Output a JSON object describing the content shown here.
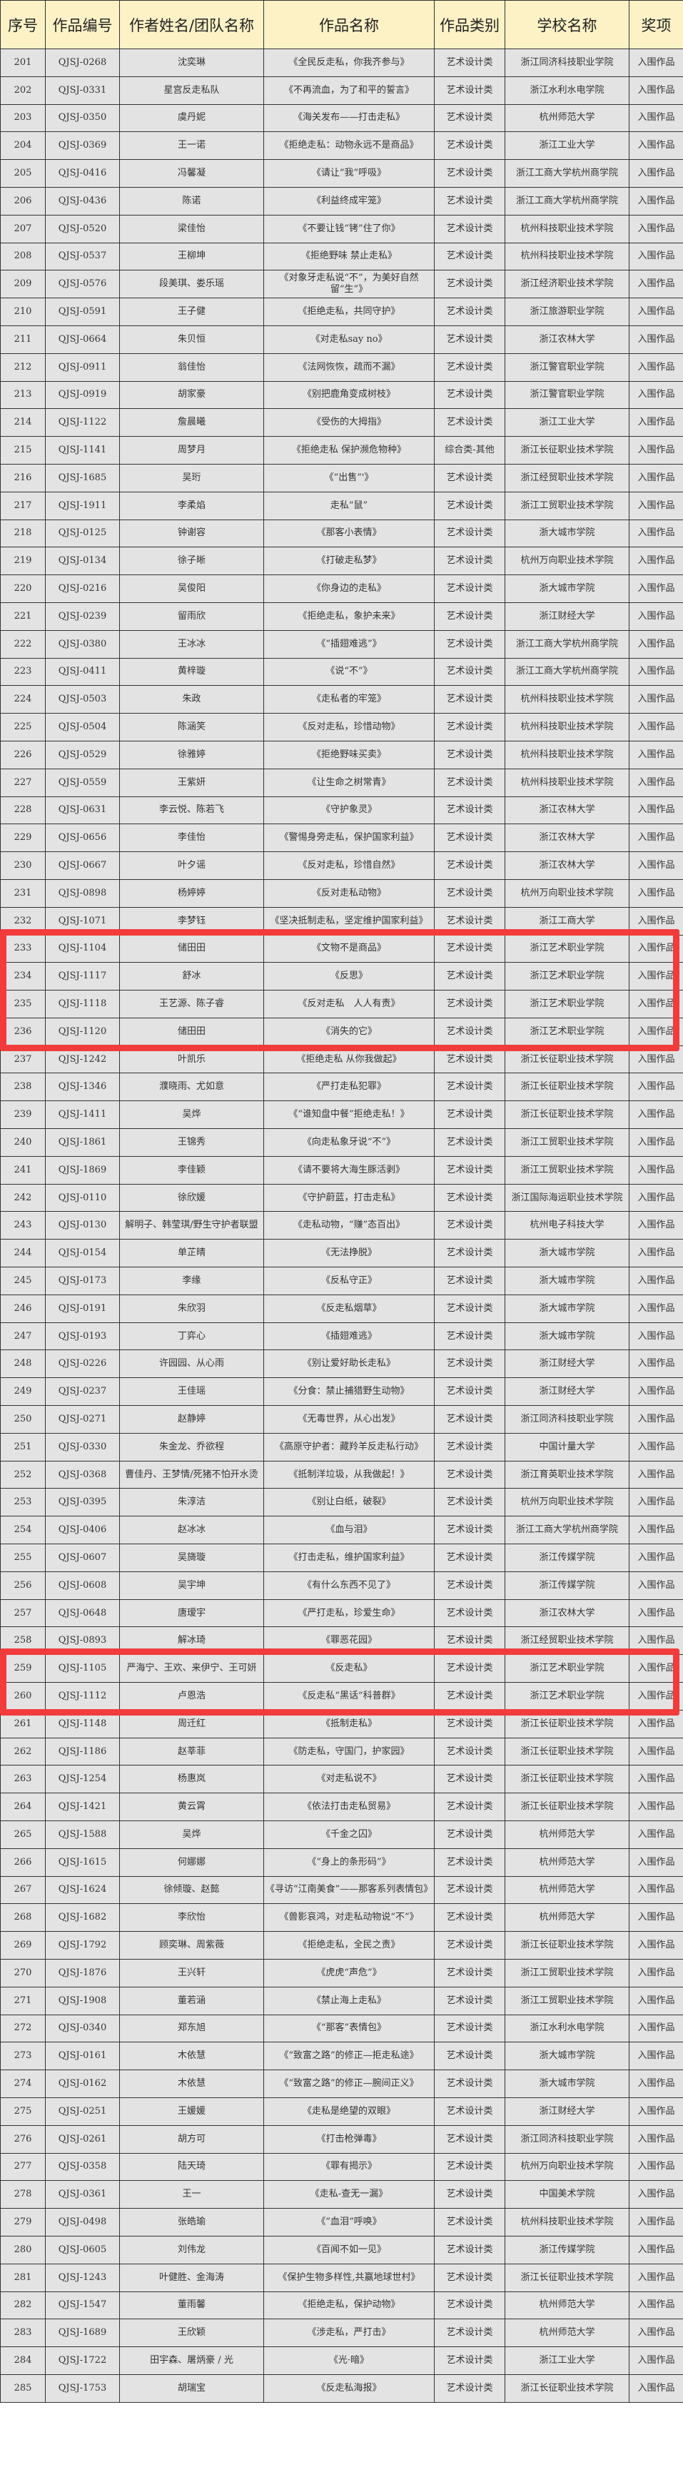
{
  "headers": [
    "序号",
    "作品编号",
    "作者姓名/团队名称",
    "作品名称",
    "作品类别",
    "学校名称",
    "奖项"
  ],
  "highlight_color": "#f23b3b",
  "highlight_groups": [
    [
      233,
      236
    ],
    [
      259,
      260
    ]
  ],
  "rows": [
    [
      "201",
      "QJSJ-0268",
      "沈奕琳",
      "《全民反走私，你我齐参与》",
      "艺术设计类",
      "浙江同济科技职业学院",
      "入围作品"
    ],
    [
      "202",
      "QJSJ-0331",
      "星宫反走私队",
      "《不再流血，为了和平的誓言》",
      "艺术设计类",
      "浙江水利水电学院",
      "入围作品"
    ],
    [
      "203",
      "QJSJ-0350",
      "虞丹妮",
      "《海关发布——打击走私》",
      "艺术设计类",
      "杭州师范大学",
      "入围作品"
    ],
    [
      "204",
      "QJSJ-0369",
      "王一诺",
      "《拒绝走私：动物永远不是商品》",
      "艺术设计类",
      "浙江工业大学",
      "入围作品"
    ],
    [
      "205",
      "QJSJ-0416",
      "冯馨凝",
      "《请让“我”呼吸》",
      "艺术设计类",
      "浙江工商大学杭州商学院",
      "入围作品"
    ],
    [
      "206",
      "QJSJ-0436",
      "陈诺",
      "《利益终成牢笼》",
      "艺术设计类",
      "浙江工商大学杭州商学院",
      "入围作品"
    ],
    [
      "207",
      "QJSJ-0520",
      "梁佳怡",
      "《不要让钱“铐”住了你》",
      "艺术设计类",
      "杭州科技职业技术学院",
      "入围作品"
    ],
    [
      "208",
      "QJSJ-0537",
      "王柳坤",
      "《拒绝野味 禁止走私》",
      "艺术设计类",
      "杭州科技职业技术学院",
      "入围作品"
    ],
    [
      "209",
      "QJSJ-0576",
      "段美琪、娄乐瑶",
      "《对象牙走私说“不”，为美好自然留“生”》",
      "艺术设计类",
      "浙江经济职业技术学院",
      "入围作品"
    ],
    [
      "210",
      "QJSJ-0591",
      "王子健",
      "《拒绝走私，共同守护》",
      "艺术设计类",
      "浙江旅游职业学院",
      "入围作品"
    ],
    [
      "211",
      "QJSJ-0664",
      "朱贝恒",
      "《对走私say no》",
      "艺术设计类",
      "浙江农林大学",
      "入围作品"
    ],
    [
      "212",
      "QJSJ-0911",
      "翁佳怡",
      "《法网恢恢，疏而不漏》",
      "艺术设计类",
      "浙江警官职业学院",
      "入围作品"
    ],
    [
      "213",
      "QJSJ-0919",
      "胡家豪",
      "《别把鹿角变成树枝》",
      "艺术设计类",
      "浙江警官职业学院",
      "入围作品"
    ],
    [
      "214",
      "QJSJ-1122",
      "詹晨曦",
      "《受伤的大拇指》",
      "艺术设计类",
      "浙江工业大学",
      "入围作品"
    ],
    [
      "215",
      "QJSJ-1141",
      "周梦月",
      "《拒绝走私 保护濒危物种》",
      "综合类-其他",
      "浙江长征职业技术学院",
      "入围作品"
    ],
    [
      "216",
      "QJSJ-1685",
      "吴珩",
      "《“出售”'》",
      "艺术设计类",
      "浙江经贸职业技术学院",
      "入围作品"
    ],
    [
      "217",
      "QJSJ-1911",
      "李柔焰",
      "走私“鼠”",
      "艺术设计类",
      "浙江工贸职业技术学院",
      "入围作品"
    ],
    [
      "218",
      "QJSJ-0125",
      "钟谢容",
      "《那客小表情》",
      "艺术设计类",
      "浙大城市学院",
      "入围作品"
    ],
    [
      "219",
      "QJSJ-0134",
      "徐子晰",
      "《打破走私梦》",
      "艺术设计类",
      "杭州万向职业技术学院",
      "入围作品"
    ],
    [
      "220",
      "QJSJ-0216",
      "吴俊阳",
      "《你身边的走私》",
      "艺术设计类",
      "浙大城市学院",
      "入围作品"
    ],
    [
      "221",
      "QJSJ-0239",
      "留雨欣",
      "《拒绝走私，象护未来》",
      "艺术设计类",
      "浙江财经大学",
      "入围作品"
    ],
    [
      "222",
      "QJSJ-0380",
      "王冰冰",
      "《“插翅难逃”》",
      "艺术设计类",
      "浙江工商大学杭州商学院",
      "入围作品"
    ],
    [
      "223",
      "QJSJ-0411",
      "黄梓璇",
      "《说“不”》",
      "艺术设计类",
      "浙江工商大学杭州商学院",
      "入围作品"
    ],
    [
      "224",
      "QJSJ-0503",
      "朱政",
      "《走私者的牢笼》",
      "艺术设计类",
      "杭州科技职业技术学院",
      "入围作品"
    ],
    [
      "225",
      "QJSJ-0504",
      "陈涵笑",
      "《反对走私，珍惜动物》",
      "艺术设计类",
      "杭州科技职业技术学院",
      "入围作品"
    ],
    [
      "226",
      "QJSJ-0529",
      "徐雅婷",
      "《拒绝野味买卖》",
      "艺术设计类",
      "杭州科技职业技术学院",
      "入围作品"
    ],
    [
      "227",
      "QJSJ-0559",
      "王紫妍",
      "《让生命之树常青》",
      "艺术设计类",
      "杭州科技职业技术学院",
      "入围作品"
    ],
    [
      "228",
      "QJSJ-0631",
      "李云悦、陈若飞",
      "《守护象灵》",
      "艺术设计类",
      "浙江农林大学",
      "入围作品"
    ],
    [
      "229",
      "QJSJ-0656",
      "李佳怡",
      "《警惕身旁走私，保护国家利益》",
      "艺术设计类",
      "浙江农林大学",
      "入围作品"
    ],
    [
      "230",
      "QJSJ-0667",
      "叶夕谣",
      "《反对走私，珍惜自然》",
      "艺术设计类",
      "浙江农林大学",
      "入围作品"
    ],
    [
      "231",
      "QJSJ-0898",
      "杨婷婷",
      "《反对走私动物》",
      "艺术设计类",
      "杭州万向职业技术学院",
      "入围作品"
    ],
    [
      "232",
      "QJSJ-1071",
      "李梦钰",
      "《坚决抵制走私，坚定维护国家利益》",
      "艺术设计类",
      "浙江工商大学",
      "入围作品"
    ],
    [
      "233",
      "QJSJ-1104",
      "储田田",
      "《文物不是商品》",
      "艺术设计类",
      "浙江艺术职业学院",
      "入围作品"
    ],
    [
      "234",
      "QJSJ-1117",
      "舒冰",
      "《反思》",
      "艺术设计类",
      "浙江艺术职业学院",
      "入围作品"
    ],
    [
      "235",
      "QJSJ-1118",
      "王艺源、陈子睿",
      "《反对走私　人人有责》",
      "艺术设计类",
      "浙江艺术职业学院",
      "入围作品"
    ],
    [
      "236",
      "QJSJ-1120",
      "储田田",
      "《消失的它》",
      "艺术设计类",
      "浙江艺术职业学院",
      "入围作品"
    ],
    [
      "237",
      "QJSJ-1242",
      "叶凯乐",
      "《拒绝走私 从你我做起》",
      "艺术设计类",
      "浙江长征职业技术学院",
      "入围作品"
    ],
    [
      "238",
      "QJSJ-1346",
      "濮晓雨、尤如意",
      "《严打走私犯罪》",
      "艺术设计类",
      "浙江长征职业技术学院",
      "入围作品"
    ],
    [
      "239",
      "QJSJ-1411",
      "吴烨",
      "《“谁知盘中餐”拒绝走私！》",
      "艺术设计类",
      "浙江长征职业技术学院",
      "入围作品"
    ],
    [
      "240",
      "QJSJ-1861",
      "王锦秀",
      "《向走私象牙说“不”》",
      "艺术设计类",
      "浙江工贸职业技术学院",
      "入围作品"
    ],
    [
      "241",
      "QJSJ-1869",
      "李佳颖",
      "《请不要将大海生豚活剥》",
      "艺术设计类",
      "浙江工贸职业技术学院",
      "入围作品"
    ],
    [
      "242",
      "QJSJ-0110",
      "徐欣媛",
      "《守护蔚蓝，打击走私》",
      "艺术设计类",
      "浙江国际海运职业技术学院",
      "入围作品"
    ],
    [
      "243",
      "QJSJ-0130",
      "解明子、韩莹琪/野生守护者联盟",
      "《走私动物，“赚”态百出》",
      "艺术设计类",
      "杭州电子科技大学",
      "入围作品"
    ],
    [
      "244",
      "QJSJ-0154",
      "单芷晴",
      "《无法挣脱》",
      "艺术设计类",
      "浙大城市学院",
      "入围作品"
    ],
    [
      "245",
      "QJSJ-0173",
      "李缘",
      "《反私守正》",
      "艺术设计类",
      "浙大城市学院",
      "入围作品"
    ],
    [
      "246",
      "QJSJ-0191",
      "朱欣羽",
      "《反走私烟草》",
      "艺术设计类",
      "浙大城市学院",
      "入围作品"
    ],
    [
      "247",
      "QJSJ-0193",
      "丁弈心",
      "《插翅难逃》",
      "艺术设计类",
      "浙大城市学院",
      "入围作品"
    ],
    [
      "248",
      "QJSJ-0226",
      "许园园、从心雨",
      "《别让爱好助长走私》",
      "艺术设计类",
      "浙江财经大学",
      "入围作品"
    ],
    [
      "249",
      "QJSJ-0237",
      "王佳瑶",
      "《分食：禁止捕猎野生动物》",
      "艺术设计类",
      "浙江财经大学",
      "入围作品"
    ],
    [
      "250",
      "QJSJ-0271",
      "赵静婷",
      "《无毒世界，从心出发》",
      "艺术设计类",
      "浙江同济科技职业学院",
      "入围作品"
    ],
    [
      "251",
      "QJSJ-0330",
      "朱金龙、乔欲程",
      "《高原守护者：藏羚羊反走私行动》",
      "艺术设计类",
      "中国计量大学",
      "入围作品"
    ],
    [
      "252",
      "QJSJ-0368",
      "曹佳丹、王梦情/死猪不怕开水烫",
      "《抵制洋垃圾，从我做起！》",
      "艺术设计类",
      "浙江育英职业技术学院",
      "入围作品"
    ],
    [
      "253",
      "QJSJ-0395",
      "朱淳洁",
      "《别让白纸，破裂》",
      "艺术设计类",
      "杭州万向职业技术学院",
      "入围作品"
    ],
    [
      "254",
      "QJSJ-0406",
      "赵冰冰",
      "《血与泪》",
      "艺术设计类",
      "浙江工商大学杭州商学院",
      "入围作品"
    ],
    [
      "255",
      "QJSJ-0607",
      "吴旖璇",
      "《打击走私，维护国家利益》",
      "艺术设计类",
      "浙江传媒学院",
      "入围作品"
    ],
    [
      "256",
      "QJSJ-0608",
      "吴宇坤",
      "《有什么东西不见了》",
      "艺术设计类",
      "浙江传媒学院",
      "入围作品"
    ],
    [
      "257",
      "QJSJ-0648",
      "唐瑷宇",
      "《严打走私，珍爱生命》",
      "艺术设计类",
      "浙江农林大学",
      "入围作品"
    ],
    [
      "258",
      "QJSJ-0893",
      "解冰琦",
      "《罪恶花园》",
      "艺术设计类",
      "浙江经贸职业技术学院",
      "入围作品"
    ],
    [
      "259",
      "QJSJ-1105",
      "严海宁、王欢、来伊宁、王可妍",
      "《反走私》",
      "艺术设计类",
      "浙江艺术职业学院",
      "入围作品"
    ],
    [
      "260",
      "QJSJ-1112",
      "卢恩浩",
      "《反走私“黑话”科普群》",
      "艺术设计类",
      "浙江艺术职业学院",
      "入围作品"
    ],
    [
      "261",
      "QJSJ-1148",
      "周迁红",
      "《抵制走私》",
      "艺术设计类",
      "浙江长征职业技术学院",
      "入围作品"
    ],
    [
      "262",
      "QJSJ-1186",
      "赵莘菲",
      "《防走私，守国门，护家园》",
      "艺术设计类",
      "浙江长征职业技术学院",
      "入围作品"
    ],
    [
      "263",
      "QJSJ-1254",
      "杨惠岚",
      "《对走私说不》",
      "艺术设计类",
      "浙江长征职业技术学院",
      "入围作品"
    ],
    [
      "264",
      "QJSJ-1421",
      "黄云霄",
      "《依法打击走私贸易》",
      "艺术设计类",
      "浙江长征职业技术学院",
      "入围作品"
    ],
    [
      "265",
      "QJSJ-1588",
      "吴烨",
      "《千金之囚》",
      "艺术设计类",
      "杭州师范大学",
      "入围作品"
    ],
    [
      "266",
      "QJSJ-1615",
      "何娜娜",
      "《“身上的条形码”》",
      "艺术设计类",
      "杭州师范大学",
      "入围作品"
    ],
    [
      "267",
      "QJSJ-1624",
      "徐倾璇、赵懿",
      "《寻访“江南美食”——那客系列表情包》",
      "艺术设计类",
      "杭州师范大学",
      "入围作品"
    ],
    [
      "268",
      "QJSJ-1682",
      "李欣怡",
      "《兽影哀鸿，对走私动物说“不”》",
      "艺术设计类",
      "杭州师范大学",
      "入围作品"
    ],
    [
      "269",
      "QJSJ-1792",
      "顾奕琳、周紫薇",
      "《拒绝走私，全民之责》",
      "艺术设计类",
      "浙江长征职业技术学院",
      "入围作品"
    ],
    [
      "270",
      "QJSJ-1876",
      "王兴轩",
      "《虎虎“声危”》",
      "艺术设计类",
      "浙江工贸职业技术学院",
      "入围作品"
    ],
    [
      "271",
      "QJSJ-1908",
      "董若涵",
      "《禁止海上走私》",
      "艺术设计类",
      "浙江工贸职业技术学院",
      "入围作品"
    ],
    [
      "272",
      "QJSJ-0340",
      "郑东旭",
      "《“那客”表情包》",
      "艺术设计类",
      "浙江水利水电学院",
      "入围作品"
    ],
    [
      "273",
      "QJSJ-0161",
      "木依慧",
      "《“致富之路”的修正—拒走私途》",
      "艺术设计类",
      "浙大城市学院",
      "入围作品"
    ],
    [
      "274",
      "QJSJ-0162",
      "木依慧",
      "《“致富之路”的修正—腕间正义》",
      "艺术设计类",
      "浙大城市学院",
      "入围作品"
    ],
    [
      "275",
      "QJSJ-0251",
      "王媛媛",
      "《走私是绝望的双眼》",
      "艺术设计类",
      "浙江财经大学",
      "入围作品"
    ],
    [
      "276",
      "QJSJ-0261",
      "胡方可",
      "《打击枪弹毒》",
      "艺术设计类",
      "浙江同济科技职业学院",
      "入围作品"
    ],
    [
      "277",
      "QJSJ-0358",
      "陆天琦",
      "《罪有揭示》",
      "艺术设计类",
      "杭州万向职业技术学院",
      "入围作品"
    ],
    [
      "278",
      "QJSJ-0361",
      "王一",
      "《走私-查无一漏》",
      "艺术设计类",
      "中国美术学院",
      "入围作品"
    ],
    [
      "279",
      "QJSJ-0498",
      "张皓瑜",
      "《”血泪“呼唤》",
      "艺术设计类",
      "杭州科技职业技术学院",
      "入围作品"
    ],
    [
      "280",
      "QJSJ-0605",
      "刘伟龙",
      "《百闻不如一见》",
      "艺术设计类",
      "浙江传媒学院",
      "入围作品"
    ],
    [
      "281",
      "QJSJ-1243",
      "叶健胜、金海涛",
      "《保护生物多样性,共赢地球世村》",
      "艺术设计类",
      "浙江长征职业技术学院",
      "入围作品"
    ],
    [
      "282",
      "QJSJ-1547",
      "董雨馨",
      "《拒绝走私，保护动物》",
      "艺术设计类",
      "杭州师范大学",
      "入围作品"
    ],
    [
      "283",
      "QJSJ-1689",
      "王欣颖",
      "《涉走私，严打击》",
      "艺术设计类",
      "杭州师范大学",
      "入围作品"
    ],
    [
      "284",
      "QJSJ-1722",
      "田宇森、屠炳豪 / 光",
      "《光·暗》",
      "艺术设计类",
      "浙江工业大学",
      "入围作品"
    ],
    [
      "285",
      "QJSJ-1753",
      "胡瑞宝",
      "《反走私海报》",
      "艺术设计类",
      "浙江长征职业技术学院",
      "入围作品"
    ]
  ]
}
